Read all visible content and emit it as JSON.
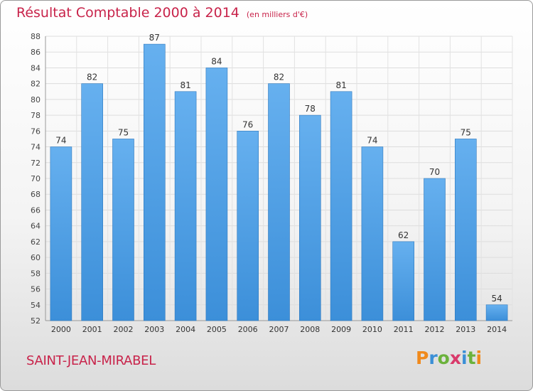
{
  "chart_data": {
    "type": "bar",
    "title": "Résultat Comptable 2000 à 2014",
    "subtitle": "(en milliers d'€)",
    "categories": [
      "2000",
      "2001",
      "2002",
      "2003",
      "2004",
      "2005",
      "2006",
      "2007",
      "2008",
      "2009",
      "2010",
      "2011",
      "2012",
      "2013",
      "2014"
    ],
    "values": [
      74,
      82,
      75,
      87,
      81,
      84,
      76,
      82,
      78,
      81,
      74,
      62,
      70,
      75,
      54
    ],
    "ylim": [
      52,
      88
    ],
    "ytick_step": 2,
    "grid": true,
    "xlabel": "",
    "ylabel": "",
    "bar_color": "#3c8fd9",
    "bar_color_light": "#66b0ef"
  },
  "footer": {
    "commune": "SAINT-JEAN-MIRABEL",
    "logo_text": "Proxiti",
    "logo_colors": [
      "#f08a1c",
      "#3a8fd6",
      "#6bb23c",
      "#d93a6b",
      "#3a8fd6",
      "#6bb23c",
      "#f08a1c"
    ]
  }
}
